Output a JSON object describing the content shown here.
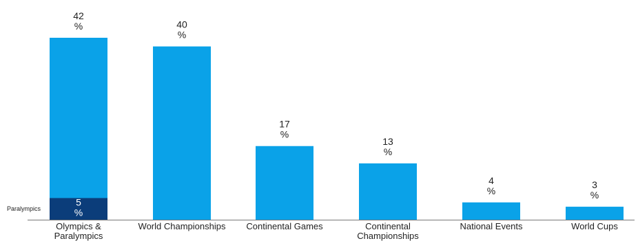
{
  "chart_data": {
    "type": "bar",
    "stacked": true,
    "categories": [
      "Olympics & Paralympics",
      "World Championships",
      "Continental Games",
      "Continental Championships",
      "National Events",
      "World Cups"
    ],
    "category_lines": [
      [
        "Olympics &",
        "Paralympics"
      ],
      [
        "World Championships"
      ],
      [
        "Continental Games"
      ],
      [
        "Continental",
        "Championships"
      ],
      [
        "National Events"
      ],
      [
        "World Cups"
      ]
    ],
    "totals": [
      42,
      40,
      17,
      13,
      4,
      3
    ],
    "segment": {
      "label": "Paralympics",
      "category_index": 0,
      "value": 5
    },
    "value_unit": "%",
    "ylim": [
      0,
      42
    ],
    "grid": false,
    "legend": "none",
    "colors": {
      "bar": "#0aa2e8",
      "segment": "#0b3d7a",
      "axis": "#777777",
      "text": "#222222"
    }
  }
}
